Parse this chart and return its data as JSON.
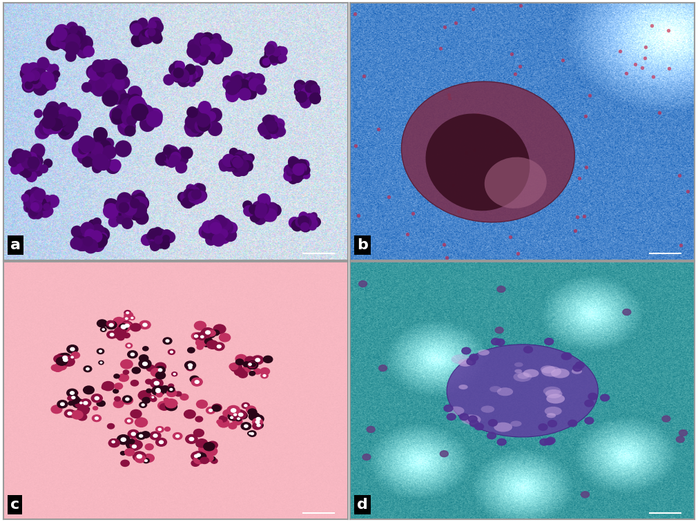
{
  "figure_width": 10.11,
  "figure_height": 7.56,
  "panels": [
    {
      "label": "a",
      "style": "mgg_blue_purple"
    },
    {
      "label": "b",
      "style": "mgg_blue_dense"
    },
    {
      "label": "c",
      "style": "he_pink"
    },
    {
      "label": "d",
      "style": "mgg_teal_purple"
    }
  ]
}
